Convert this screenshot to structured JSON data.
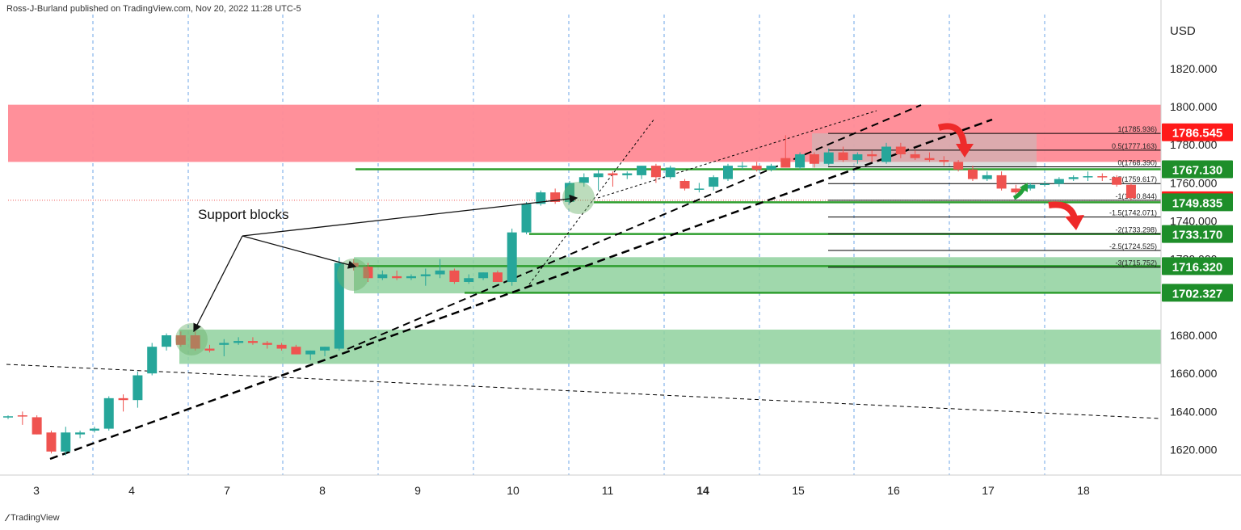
{
  "header": {
    "attribution": "Ross-J-Burland published on TradingView.com, Nov 20, 2022 11:28 UTC-5"
  },
  "footer": {
    "brand": "TradingView",
    "logo_icon": "tradingview-logo-icon"
  },
  "colors": {
    "bull": "#26a69a",
    "bear": "#ef5350",
    "resistance_zone": "#ff8a95",
    "support_zone": "#8fd19e",
    "support_line": "#2e9e2e",
    "trend": "#000000"
  },
  "annotations": {
    "support_label": "Support blocks"
  },
  "fib_levels": [
    {
      "label": "1(1785.936)",
      "value": 1785.936
    },
    {
      "label": "0.5(1777.163)",
      "value": 1777.163
    },
    {
      "label": "0(1768.390)",
      "value": 1768.39
    },
    {
      "label": "-0.5(1759.617)",
      "value": 1759.617
    },
    {
      "label": "-1(1750.844)",
      "value": 1750.844
    },
    {
      "label": "-1.5(1742.071)",
      "value": 1742.071
    },
    {
      "label": "-2(1733.298)",
      "value": 1733.298
    },
    {
      "label": "-2.5(1724.525)",
      "value": 1724.525
    },
    {
      "label": "-3(1715.752)",
      "value": 1715.752
    }
  ],
  "price_badges": [
    {
      "text": "1786.545",
      "value": 1786.545,
      "color": "#ff1a1a"
    },
    {
      "text": "1767.130",
      "value": 1767.13,
      "color": "#1e8e2a"
    },
    {
      "text": "1750.870",
      "value": 1750.87,
      "color": "#ff1a1a"
    },
    {
      "text": "1749.835",
      "value": 1749.835,
      "color": "#1e8e2a"
    },
    {
      "text": "1733.170",
      "value": 1733.17,
      "color": "#1e8e2a"
    },
    {
      "text": "1716.320",
      "value": 1716.32,
      "color": "#1e8e2a"
    },
    {
      "text": "1702.327",
      "value": 1702.327,
      "color": "#1e8e2a"
    }
  ],
  "chart_data": {
    "type": "candlestick",
    "symbol_currency": "USD",
    "y_ticks": [
      "1620.000",
      "1640.000",
      "1660.000",
      "1680.000",
      "1700.000",
      "1720.000",
      "1740.000",
      "1760.000",
      "1780.000",
      "1800.000",
      "1820.000"
    ],
    "ylim": [
      1607,
      1843
    ],
    "x_labels": [
      "3",
      "4",
      "7",
      "8",
      "9",
      "10",
      "11",
      "14",
      "15",
      "16",
      "17",
      "18"
    ],
    "zones": [
      {
        "kind": "resistance",
        "from": 1771,
        "to": 1801
      },
      {
        "kind": "support",
        "from": 1702,
        "to": 1721
      },
      {
        "kind": "support",
        "from": 1665,
        "to": 1683
      }
    ],
    "candles": [
      {
        "o": 1637.0,
        "h": 1638.0,
        "l": 1636.0,
        "c": 1637.5
      },
      {
        "o": 1638.0,
        "h": 1640.0,
        "l": 1633.0,
        "c": 1637.5
      },
      {
        "o": 1637.0,
        "h": 1638.0,
        "l": 1628.0,
        "c": 1628.0
      },
      {
        "o": 1629.0,
        "h": 1630.0,
        "l": 1618.0,
        "c": 1619.0
      },
      {
        "o": 1619.0,
        "h": 1632.0,
        "l": 1617.0,
        "c": 1629.0
      },
      {
        "o": 1628.0,
        "h": 1630.0,
        "l": 1626.0,
        "c": 1629.0
      },
      {
        "o": 1630.0,
        "h": 1632.0,
        "l": 1629.0,
        "c": 1631.0
      },
      {
        "o": 1631.0,
        "h": 1648.0,
        "l": 1630.0,
        "c": 1647.0
      },
      {
        "o": 1647.0,
        "h": 1649.0,
        "l": 1640.0,
        "c": 1646.0
      },
      {
        "o": 1646.0,
        "h": 1661.0,
        "l": 1642.0,
        "c": 1659.0
      },
      {
        "o": 1660.0,
        "h": 1676.0,
        "l": 1659.0,
        "c": 1674.0
      },
      {
        "o": 1674.0,
        "h": 1681.0,
        "l": 1672.0,
        "c": 1680.0
      },
      {
        "o": 1680.0,
        "h": 1682.0,
        "l": 1674.0,
        "c": 1675.0
      },
      {
        "o": 1680.0,
        "h": 1682.0,
        "l": 1672.0,
        "c": 1673.0
      },
      {
        "o": 1673.0,
        "h": 1675.0,
        "l": 1671.0,
        "c": 1672.0
      },
      {
        "o": 1675.0,
        "h": 1678.0,
        "l": 1669.0,
        "c": 1676.0
      },
      {
        "o": 1676.0,
        "h": 1679.0,
        "l": 1675.0,
        "c": 1677.0
      },
      {
        "o": 1677.0,
        "h": 1679.0,
        "l": 1675.0,
        "c": 1676.0
      },
      {
        "o": 1676.0,
        "h": 1677.0,
        "l": 1673.0,
        "c": 1675.0
      },
      {
        "o": 1675.0,
        "h": 1676.0,
        "l": 1672.0,
        "c": 1673.0
      },
      {
        "o": 1674.0,
        "h": 1675.0,
        "l": 1670.0,
        "c": 1670.0
      },
      {
        "o": 1670.0,
        "h": 1672.0,
        "l": 1667.0,
        "c": 1672.0
      },
      {
        "o": 1672.0,
        "h": 1674.0,
        "l": 1669.0,
        "c": 1674.0
      },
      {
        "o": 1673.0,
        "h": 1721.0,
        "l": 1672.0,
        "c": 1718.0
      },
      {
        "o": 1718.0,
        "h": 1720.0,
        "l": 1714.0,
        "c": 1716.0
      },
      {
        "o": 1716.0,
        "h": 1718.0,
        "l": 1708.0,
        "c": 1710.0
      },
      {
        "o": 1710.0,
        "h": 1714.0,
        "l": 1709.0,
        "c": 1712.0
      },
      {
        "o": 1711.0,
        "h": 1714.0,
        "l": 1709.0,
        "c": 1710.0
      },
      {
        "o": 1710.0,
        "h": 1712.0,
        "l": 1709.0,
        "c": 1711.0
      },
      {
        "o": 1711.0,
        "h": 1715.0,
        "l": 1706.0,
        "c": 1712.0
      },
      {
        "o": 1712.0,
        "h": 1720.0,
        "l": 1710.0,
        "c": 1714.0
      },
      {
        "o": 1714.0,
        "h": 1715.0,
        "l": 1707.0,
        "c": 1708.0
      },
      {
        "o": 1708.0,
        "h": 1712.0,
        "l": 1707.0,
        "c": 1710.0
      },
      {
        "o": 1710.0,
        "h": 1713.0,
        "l": 1709.0,
        "c": 1713.0
      },
      {
        "o": 1713.0,
        "h": 1714.0,
        "l": 1708.0,
        "c": 1708.0
      },
      {
        "o": 1708.0,
        "h": 1736.0,
        "l": 1706.0,
        "c": 1734.0
      },
      {
        "o": 1734.0,
        "h": 1750.0,
        "l": 1733.0,
        "c": 1749.0
      },
      {
        "o": 1749.0,
        "h": 1756.0,
        "l": 1748.0,
        "c": 1755.0
      },
      {
        "o": 1755.0,
        "h": 1757.0,
        "l": 1749.0,
        "c": 1750.0
      },
      {
        "o": 1750.0,
        "h": 1761.0,
        "l": 1749.0,
        "c": 1760.0
      },
      {
        "o": 1760.0,
        "h": 1765.0,
        "l": 1758.0,
        "c": 1763.0
      },
      {
        "o": 1763.0,
        "h": 1767.0,
        "l": 1756.0,
        "c": 1765.0
      },
      {
        "o": 1765.0,
        "h": 1766.0,
        "l": 1758.0,
        "c": 1764.0
      },
      {
        "o": 1764.0,
        "h": 1766.0,
        "l": 1762.0,
        "c": 1765.0
      },
      {
        "o": 1764.0,
        "h": 1769.0,
        "l": 1762.0,
        "c": 1769.0
      },
      {
        "o": 1769.0,
        "h": 1770.0,
        "l": 1760.0,
        "c": 1763.0
      },
      {
        "o": 1763.0,
        "h": 1769.0,
        "l": 1762.0,
        "c": 1768.0
      },
      {
        "o": 1761.0,
        "h": 1762.0,
        "l": 1756.0,
        "c": 1757.0
      },
      {
        "o": 1757.0,
        "h": 1760.0,
        "l": 1755.0,
        "c": 1757.0
      },
      {
        "o": 1758.0,
        "h": 1764.0,
        "l": 1756.0,
        "c": 1763.0
      },
      {
        "o": 1762.0,
        "h": 1770.0,
        "l": 1761.0,
        "c": 1769.0
      },
      {
        "o": 1769.0,
        "h": 1771.0,
        "l": 1767.0,
        "c": 1769.0
      },
      {
        "o": 1769.0,
        "h": 1771.0,
        "l": 1766.0,
        "c": 1767.0
      },
      {
        "o": 1767.0,
        "h": 1770.0,
        "l": 1766.0,
        "c": 1769.0
      },
      {
        "o": 1773.0,
        "h": 1785.0,
        "l": 1768.0,
        "c": 1768.0
      },
      {
        "o": 1768.0,
        "h": 1776.0,
        "l": 1767.0,
        "c": 1775.0
      },
      {
        "o": 1775.0,
        "h": 1776.0,
        "l": 1768.0,
        "c": 1770.0
      },
      {
        "o": 1770.0,
        "h": 1778.0,
        "l": 1769.0,
        "c": 1776.0
      },
      {
        "o": 1776.0,
        "h": 1779.0,
        "l": 1771.0,
        "c": 1772.0
      },
      {
        "o": 1772.0,
        "h": 1776.0,
        "l": 1770.0,
        "c": 1775.0
      },
      {
        "o": 1775.0,
        "h": 1777.0,
        "l": 1771.0,
        "c": 1774.0
      },
      {
        "o": 1771.0,
        "h": 1781.0,
        "l": 1770.0,
        "c": 1779.0
      },
      {
        "o": 1779.0,
        "h": 1781.0,
        "l": 1773.0,
        "c": 1775.0
      },
      {
        "o": 1775.0,
        "h": 1777.0,
        "l": 1772.0,
        "c": 1773.0
      },
      {
        "o": 1773.0,
        "h": 1776.0,
        "l": 1771.0,
        "c": 1772.0
      },
      {
        "o": 1772.0,
        "h": 1774.0,
        "l": 1769.0,
        "c": 1771.0
      },
      {
        "o": 1771.0,
        "h": 1772.0,
        "l": 1766.0,
        "c": 1767.0
      },
      {
        "o": 1767.0,
        "h": 1769.0,
        "l": 1761.0,
        "c": 1762.0
      },
      {
        "o": 1762.0,
        "h": 1766.0,
        "l": 1761.0,
        "c": 1764.0
      },
      {
        "o": 1764.0,
        "h": 1766.0,
        "l": 1756.0,
        "c": 1757.0
      },
      {
        "o": 1757.0,
        "h": 1759.0,
        "l": 1754.0,
        "c": 1755.0
      },
      {
        "o": 1757.0,
        "h": 1760.0,
        "l": 1756.0,
        "c": 1759.0
      },
      {
        "o": 1759.0,
        "h": 1761.0,
        "l": 1758.0,
        "c": 1759.5
      },
      {
        "o": 1759.5,
        "h": 1763.0,
        "l": 1758.0,
        "c": 1762.0
      },
      {
        "o": 1762.0,
        "h": 1764.0,
        "l": 1761.0,
        "c": 1763.0
      },
      {
        "o": 1763.0,
        "h": 1766.0,
        "l": 1761.0,
        "c": 1763.5
      },
      {
        "o": 1763.5,
        "h": 1765.0,
        "l": 1761.0,
        "c": 1763.0
      },
      {
        "o": 1763.0,
        "h": 1764.0,
        "l": 1758.0,
        "c": 1759.0
      },
      {
        "o": 1759.0,
        "h": 1760.0,
        "l": 1751.0,
        "c": 1752.0
      }
    ]
  }
}
